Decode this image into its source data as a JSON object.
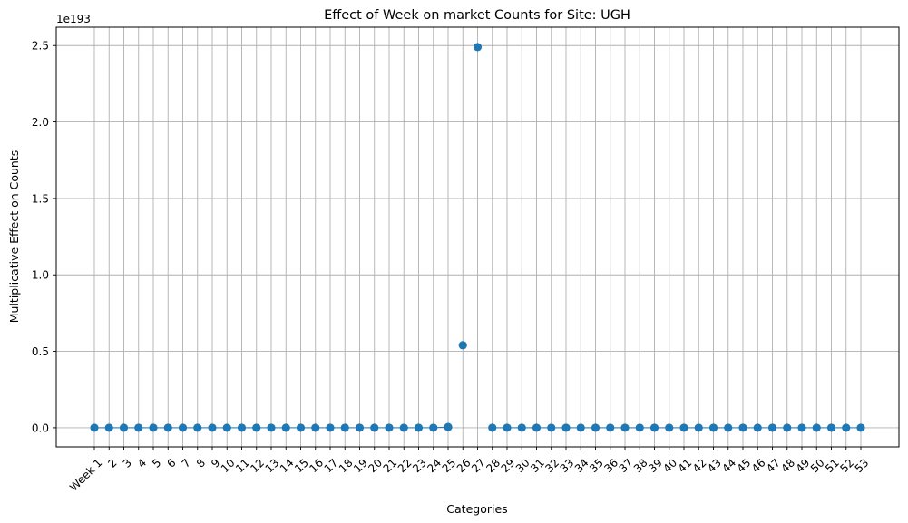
{
  "chart_data": {
    "type": "scatter",
    "title": "Effect of Week on market Counts for Site: UGH",
    "xlabel": "Categories",
    "ylabel": "Multiplicative Effect on Counts",
    "y_offset_label": "1e193",
    "y_scale": "1e193",
    "categories": [
      "Week 1",
      "2",
      "3",
      "4",
      "5",
      "6",
      "7",
      "8",
      "9",
      "10",
      "11",
      "12",
      "13",
      "14",
      "15",
      "16",
      "17",
      "18",
      "19",
      "20",
      "21",
      "22",
      "23",
      "24",
      "25",
      "26",
      "27",
      "28",
      "29",
      "30",
      "31",
      "32",
      "33",
      "34",
      "35",
      "36",
      "37",
      "38",
      "39",
      "40",
      "41",
      "42",
      "43",
      "44",
      "45",
      "46",
      "47",
      "48",
      "49",
      "50",
      "51",
      "52",
      "53"
    ],
    "values": [
      0,
      0,
      0,
      0,
      0,
      0,
      0,
      0,
      0,
      0,
      0,
      0,
      0,
      0,
      0,
      0,
      0,
      0,
      0,
      0,
      0,
      0,
      0,
      0,
      0.005,
      0.54,
      2.49,
      0,
      0,
      0,
      0,
      0,
      0,
      0,
      0,
      0,
      0,
      0,
      0,
      0,
      0,
      0,
      0,
      0,
      0,
      0,
      0,
      0,
      0,
      0,
      0,
      0,
      0
    ],
    "yticks": [
      0.0,
      0.5,
      1.0,
      1.5,
      2.0,
      2.5
    ],
    "ytick_labels": [
      "0.0",
      "0.5",
      "1.0",
      "1.5",
      "2.0",
      "2.5"
    ],
    "ylim": [
      -0.125,
      2.62
    ],
    "grid": true,
    "marker_color": "#1f77b4",
    "line_color": "#1f77b4",
    "grid_color": "#b0b0b0"
  }
}
